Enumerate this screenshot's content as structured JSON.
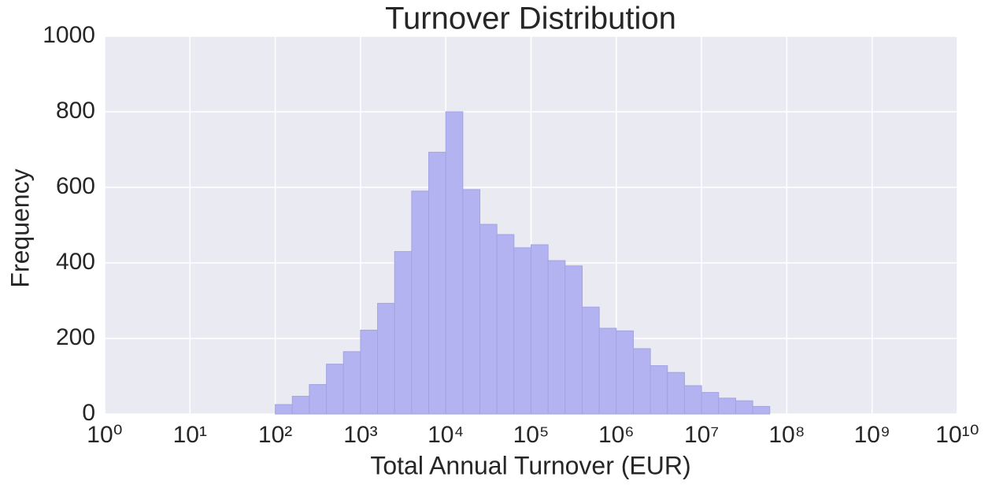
{
  "chart_data": {
    "type": "histogram",
    "title": "Turnover Distribution",
    "x_label": "Total Annual Turnover (EUR)",
    "y_label": "Frequency",
    "xscale": "log",
    "grid": true,
    "color": "#b3b3f2",
    "bins": [
      100,
      158.49,
      251.19,
      398.11,
      630.96,
      1000,
      1584.9,
      2511.9,
      3981.1,
      6309.6,
      10000,
      15849,
      25119,
      39811,
      63096,
      100000,
      158489,
      251189,
      398107,
      630957,
      1000000,
      1584893,
      2511886,
      3981072,
      6309573,
      10000000,
      15848932,
      25118864,
      39810717,
      63095734
    ],
    "values": [
      25,
      47,
      78,
      132,
      165,
      222,
      293,
      430,
      590,
      693,
      800,
      594,
      502,
      475,
      440,
      448,
      406,
      392,
      283,
      227,
      220,
      173,
      128,
      110,
      75,
      57,
      42,
      35,
      20
    ],
    "xlim": [
      1,
      10000000000
    ],
    "ylim": [
      0,
      1000
    ],
    "xticks": [
      {
        "value": 1,
        "label": "10⁰"
      },
      {
        "value": 10,
        "label": "10¹"
      },
      {
        "value": 100,
        "label": "10²"
      },
      {
        "value": 1000,
        "label": "10³"
      },
      {
        "value": 10000,
        "label": "10⁴"
      },
      {
        "value": 100000,
        "label": "10⁵"
      },
      {
        "value": 1000000,
        "label": "10⁶"
      },
      {
        "value": 10000000,
        "label": "10⁷"
      },
      {
        "value": 100000000,
        "label": "10⁸"
      },
      {
        "value": 1000000000,
        "label": "10⁹"
      },
      {
        "value": 10000000000,
        "label": "10¹⁰"
      }
    ],
    "yticks": [
      0,
      200,
      400,
      600,
      800,
      1000
    ]
  }
}
